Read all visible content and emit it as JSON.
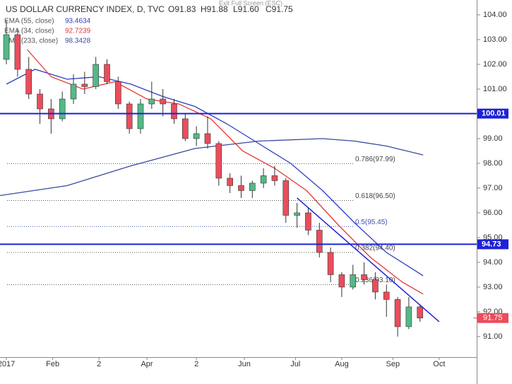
{
  "header": {
    "title": "US DOLLAR CURRENCY INDEX, D, TVC",
    "ohlc": [
      "O91.83",
      "H91.88",
      "L91.60",
      "C91.75"
    ],
    "exit": "Exit Full Screen (ESC)"
  },
  "chart_data": {
    "type": "candlestick",
    "x": [
      2,
      9,
      16,
      23,
      30,
      37,
      44,
      51,
      58,
      65,
      72,
      79,
      86,
      93,
      100,
      107,
      114,
      121,
      128,
      135,
      142,
      149,
      156,
      163,
      170,
      177,
      184,
      191,
      198,
      205,
      212,
      219,
      226,
      233,
      240,
      247,
      254,
      261
    ],
    "open": [
      102.2,
      103.2,
      101.8,
      100.8,
      100.2,
      99.8,
      100.6,
      101.2,
      101.1,
      102.0,
      101.3,
      100.4,
      99.4,
      100.4,
      100.6,
      100.4,
      99.8,
      99.0,
      99.2,
      98.8,
      97.4,
      97.1,
      96.9,
      97.2,
      97.5,
      97.3,
      95.9,
      96.0,
      95.3,
      94.4,
      93.5,
      93.0,
      93.5,
      93.3,
      92.8,
      92.5,
      91.4,
      92.2
    ],
    "high": [
      103.8,
      103.4,
      102.3,
      101.0,
      100.6,
      100.9,
      101.6,
      101.7,
      102.3,
      102.2,
      101.5,
      100.5,
      100.6,
      101.3,
      101.0,
      100.6,
      100.0,
      99.5,
      99.9,
      98.9,
      97.6,
      97.5,
      97.3,
      97.8,
      97.9,
      97.4,
      96.4,
      96.2,
      95.6,
      94.6,
      93.6,
      93.9,
      94.0,
      93.6,
      93.1,
      92.6,
      92.6,
      92.3
    ],
    "low": [
      102.0,
      101.5,
      100.6,
      99.6,
      99.2,
      99.7,
      100.4,
      100.8,
      101.0,
      101.2,
      100.2,
      99.2,
      99.2,
      100.2,
      99.9,
      99.6,
      98.9,
      98.7,
      98.6,
      97.1,
      96.8,
      96.6,
      96.6,
      97.0,
      97.1,
      95.6,
      95.4,
      95.1,
      94.2,
      93.2,
      92.6,
      92.9,
      93.1,
      92.5,
      91.8,
      91.0,
      91.3,
      91.6
    ],
    "close": [
      103.2,
      101.8,
      100.8,
      100.2,
      99.8,
      100.6,
      101.2,
      101.1,
      102.0,
      101.3,
      100.4,
      99.4,
      100.4,
      100.6,
      100.4,
      99.8,
      99.0,
      99.2,
      98.8,
      97.4,
      97.1,
      96.9,
      97.2,
      97.5,
      97.3,
      95.9,
      96.0,
      95.3,
      94.4,
      93.5,
      93.0,
      93.5,
      93.3,
      92.8,
      92.5,
      91.4,
      92.2,
      91.75
    ],
    "up_color": "#53b987",
    "down_color": "#eb4d5c",
    "xlim": [
      -2,
      296.5
    ],
    "xticks": [
      {
        "value": 2,
        "label": "2017"
      },
      {
        "value": 31,
        "label": "Feb"
      },
      {
        "value": 60,
        "label": "2"
      },
      {
        "value": 90,
        "label": "Apr"
      },
      {
        "value": 121,
        "label": "2"
      },
      {
        "value": 151,
        "label": "Jun"
      },
      {
        "value": 183,
        "label": "Jul"
      },
      {
        "value": 212,
        "label": "Aug"
      },
      {
        "value": 244,
        "label": "Sep"
      },
      {
        "value": 273,
        "label": "Oct"
      }
    ],
    "ylim": [
      90.17,
      104.6
    ],
    "yticks": [
      {
        "value": 91,
        "label": "91.00"
      },
      {
        "value": 92,
        "label": "92.00"
      },
      {
        "value": 93,
        "label": "93.00"
      },
      {
        "value": 94,
        "label": "94.00"
      },
      {
        "value": 95,
        "label": "95.00"
      },
      {
        "value": 96,
        "label": "96.00"
      },
      {
        "value": 97,
        "label": "97.00"
      },
      {
        "value": 98,
        "label": "98.00"
      },
      {
        "value": 99,
        "label": "99.00"
      },
      {
        "value": 100,
        "label": "100.00"
      },
      {
        "value": 101,
        "label": "101.00"
      },
      {
        "value": 102,
        "label": "102.00"
      },
      {
        "value": 103,
        "label": "103.00"
      },
      {
        "value": 104,
        "label": "104.00"
      }
    ],
    "series": [
      {
        "name": "EMA (55, close)",
        "color": "#2f3dbf",
        "last_value": 93.4634,
        "x": [
          2,
          20,
          40,
          60,
          80,
          100,
          120,
          140,
          160,
          180,
          200,
          220,
          240,
          263
        ],
        "values": [
          101.2,
          101.8,
          101.4,
          101.5,
          101.2,
          100.7,
          100.3,
          99.6,
          98.8,
          98.0,
          96.9,
          95.6,
          94.4,
          93.46
        ]
      },
      {
        "name": "EMA (34, close)",
        "color": "#e53935",
        "last_value": 92.7239,
        "x": [
          15,
          30,
          50,
          70,
          90,
          110,
          130,
          150,
          170,
          190,
          210,
          230,
          250,
          263
        ],
        "values": [
          102.6,
          101.5,
          101.0,
          101.3,
          100.6,
          100.4,
          99.8,
          98.5,
          97.8,
          96.9,
          95.5,
          94.2,
          93.2,
          92.72
        ]
      },
      {
        "name": "EMA (233, close)",
        "color": "#3a4aa0",
        "last_value": 98.3428,
        "x": [
          -2,
          40,
          80,
          120,
          160,
          200,
          220,
          240,
          263
        ],
        "values": [
          96.7,
          97.1,
          97.9,
          98.6,
          98.9,
          99.0,
          98.9,
          98.7,
          98.34
        ]
      }
    ],
    "hlines": [
      {
        "value": 100.01,
        "color": "#1e22d6"
      },
      {
        "value": 94.73,
        "color": "#1e22d6"
      }
    ],
    "fib": [
      {
        "value": 97.99,
        "label": "0.786(97.99)"
      },
      {
        "value": 96.5,
        "label": "0.618(96.50)"
      },
      {
        "value": 95.45,
        "label": "0.5(95.45)"
      },
      {
        "value": 94.4,
        "label": "0.382(94.40)"
      },
      {
        "value": 93.1,
        "label": "0.236(93.10)"
      }
    ],
    "trendline": {
      "color": "#1e22d6",
      "x": [
        184,
        273
      ],
      "values": [
        96.6,
        91.6
      ]
    },
    "last_price": {
      "value": 91.75,
      "color": "#eb4d5c"
    }
  }
}
